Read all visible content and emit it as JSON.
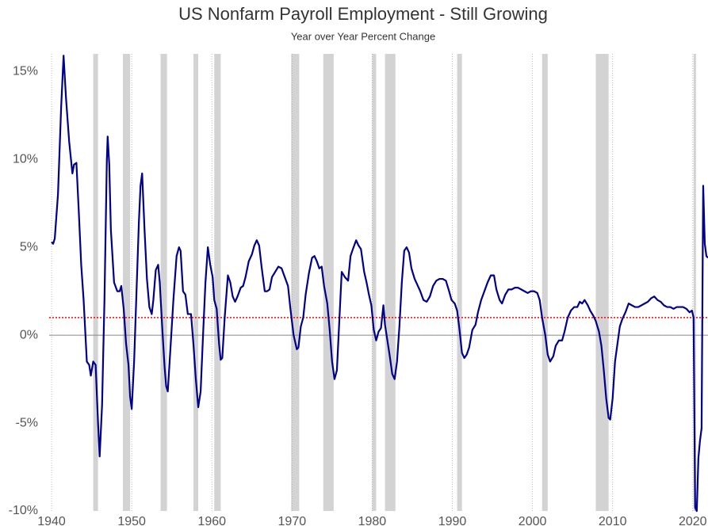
{
  "chart_data": {
    "type": "line",
    "title": "US Nonfarm Payroll Employment - Still Growing",
    "subtitle": "Year over Year Percent Change",
    "xlim": [
      1939.7,
      2021.9
    ],
    "xticks": [
      1940,
      1950,
      1960,
      1970,
      1980,
      1990,
      2000,
      2010,
      2020
    ],
    "ylim": [
      -10,
      16
    ],
    "yticks": [
      {
        "value": -10,
        "label": "-10%"
      },
      {
        "value": -5,
        "label": "-5%"
      },
      {
        "value": 0,
        "label": "0%"
      },
      {
        "value": 5,
        "label": "5%"
      },
      {
        "value": 10,
        "label": "10%"
      },
      {
        "value": 15,
        "label": "15%"
      }
    ],
    "baseline": 0,
    "reference_line": {
      "value": 1,
      "color": "#ff0000"
    },
    "recession_color": "#d3d3d3",
    "recessions": [
      [
        1945.2,
        1945.8
      ],
      [
        1948.9,
        1949.8
      ],
      [
        1953.6,
        1954.4
      ],
      [
        1957.7,
        1958.3
      ],
      [
        1960.3,
        1961.1
      ],
      [
        1969.9,
        1970.9
      ],
      [
        1973.9,
        1975.2
      ],
      [
        1980.0,
        1980.5
      ],
      [
        1981.6,
        1982.9
      ],
      [
        1990.6,
        1991.2
      ],
      [
        2001.2,
        2001.9
      ],
      [
        2007.9,
        2009.5
      ],
      [
        2020.1,
        2020.4
      ]
    ],
    "color": "#00008b",
    "x": [
      1940.0,
      1940.2,
      1940.4,
      1940.8,
      1941.2,
      1941.5,
      1941.8,
      1942.2,
      1942.6,
      1942.8,
      1943.1,
      1943.4,
      1943.7,
      1944.0,
      1944.4,
      1944.7,
      1944.9,
      1945.2,
      1945.5,
      1945.8,
      1946.0,
      1946.3,
      1946.6,
      1946.9,
      1947.0,
      1947.2,
      1947.4,
      1947.8,
      1948.2,
      1948.5,
      1948.7,
      1949.0,
      1949.3,
      1949.6,
      1949.8,
      1950.0,
      1950.3,
      1950.6,
      1950.9,
      1951.1,
      1951.3,
      1951.6,
      1951.9,
      1952.2,
      1952.5,
      1952.7,
      1953.0,
      1953.3,
      1953.5,
      1953.8,
      1954.1,
      1954.3,
      1954.5,
      1954.8,
      1955.2,
      1955.6,
      1955.9,
      1956.1,
      1956.4,
      1956.7,
      1957.0,
      1957.4,
      1957.7,
      1958.0,
      1958.3,
      1958.6,
      1958.9,
      1959.2,
      1959.5,
      1959.8,
      1960.1,
      1960.3,
      1960.6,
      1960.9,
      1961.1,
      1961.3,
      1961.6,
      1962.0,
      1962.3,
      1962.6,
      1962.9,
      1963.2,
      1963.6,
      1963.9,
      1964.2,
      1964.6,
      1965.0,
      1965.3,
      1965.6,
      1965.9,
      1966.2,
      1966.6,
      1966.9,
      1967.2,
      1967.5,
      1967.9,
      1968.3,
      1968.7,
      1969.1,
      1969.5,
      1969.8,
      1970.2,
      1970.6,
      1970.8,
      1971.1,
      1971.4,
      1971.7,
      1972.1,
      1972.5,
      1972.8,
      1973.1,
      1973.4,
      1973.7,
      1974.0,
      1974.4,
      1974.7,
      1975.0,
      1975.3,
      1975.6,
      1975.9,
      1976.2,
      1976.6,
      1977.0,
      1977.3,
      1977.6,
      1978.0,
      1978.3,
      1978.6,
      1979.0,
      1979.3,
      1979.6,
      1979.9,
      1980.2,
      1980.5,
      1980.8,
      1981.1,
      1981.4,
      1981.6,
      1981.9,
      1982.2,
      1982.5,
      1982.8,
      1983.1,
      1983.4,
      1983.7,
      1984.0,
      1984.3,
      1984.6,
      1984.9,
      1985.3,
      1985.7,
      1986.0,
      1986.4,
      1986.8,
      1987.2,
      1987.6,
      1988.0,
      1988.4,
      1988.8,
      1989.2,
      1989.6,
      1989.9,
      1990.3,
      1990.6,
      1990.9,
      1991.2,
      1991.5,
      1991.8,
      1992.1,
      1992.5,
      1992.9,
      1993.2,
      1993.6,
      1994.0,
      1994.4,
      1994.8,
      1995.2,
      1995.5,
      1995.9,
      1996.2,
      1996.6,
      1997.0,
      1997.4,
      1997.8,
      1998.2,
      1998.6,
      1999.0,
      1999.4,
      1999.8,
      2000.2,
      2000.6,
      2000.9,
      2001.2,
      2001.6,
      2001.9,
      2002.2,
      2002.6,
      2002.9,
      2003.3,
      2003.7,
      2004.0,
      2004.4,
      2004.8,
      2005.2,
      2005.6,
      2005.9,
      2006.2,
      2006.5,
      2006.9,
      2007.2,
      2007.6,
      2007.9,
      2008.3,
      2008.6,
      2008.9,
      2009.2,
      2009.5,
      2009.7,
      2010.0,
      2010.3,
      2010.6,
      2010.9,
      2011.2,
      2011.6,
      2012.0,
      2012.4,
      2012.8,
      2013.2,
      2013.6,
      2014.0,
      2014.4,
      2014.8,
      2015.2,
      2015.6,
      2016.0,
      2016.4,
      2016.8,
      2017.2,
      2017.6,
      2018.0,
      2018.4,
      2018.8,
      2019.2,
      2019.6,
      2019.9,
      2020.1,
      2020.3,
      2020.5,
      2020.7,
      2020.9,
      2021.1,
      2021.3,
      2021.5,
      2021.7,
      2021.9
    ],
    "values": [
      5.3,
      5.2,
      5.5,
      8,
      13,
      15.9,
      13.5,
      11,
      9.2,
      9.7,
      9.8,
      7,
      4,
      2,
      -1.5,
      -1.7,
      -2.3,
      -1.5,
      -1.7,
      -5,
      -6.9,
      -4,
      2,
      10,
      11.3,
      9.7,
      6,
      3,
      2.5,
      2.5,
      2.8,
      1.5,
      -0.5,
      -1.7,
      -3.5,
      -4.2,
      -1.5,
      2.5,
      6.5,
      8.5,
      9.2,
      6,
      3.2,
      1.6,
      1.2,
      2,
      3.7,
      4.0,
      3,
      0.5,
      -1.8,
      -2.9,
      -3.2,
      -1,
      2,
      4.5,
      5.0,
      4.8,
      2.5,
      2.3,
      1.2,
      1.2,
      -0.5,
      -2.5,
      -4.1,
      -3.2,
      0,
      3,
      5.0,
      4,
      3.3,
      2,
      1.5,
      -0.5,
      -1.4,
      -1.3,
      1,
      3.4,
      3,
      2.2,
      1.9,
      2.2,
      2.7,
      2.8,
      3.3,
      4.2,
      4.6,
      5.1,
      5.4,
      5.1,
      3.9,
      2.5,
      2.5,
      2.6,
      3.3,
      3.6,
      3.9,
      3.8,
      3.3,
      2.8,
      1.5,
      0,
      -0.8,
      -0.7,
      0.5,
      1,
      2.3,
      3.5,
      4.4,
      4.5,
      4.2,
      3.8,
      3.9,
      2.8,
      1.8,
      0.3,
      -1.5,
      -2.5,
      -2,
      0.8,
      3.6,
      3.3,
      3.1,
      4.5,
      4.9,
      5.4,
      5.1,
      4.9,
      3.6,
      3,
      2.3,
      1.7,
      0.3,
      -0.3,
      0.2,
      0.4,
      1.7,
      0.6,
      -0.3,
      -1.2,
      -2.2,
      -2.5,
      -1.5,
      0.5,
      3,
      4.8,
      5,
      4.7,
      3.8,
      3.2,
      2.8,
      2.5,
      2,
      1.9,
      2.2,
      2.8,
      3.1,
      3.2,
      3.2,
      3.1,
      2.5,
      2,
      1.8,
      1.4,
      0.3,
      -1,
      -1.3,
      -1.1,
      -0.7,
      0.3,
      0.6,
      1.3,
      2,
      2.5,
      3,
      3.4,
      3.4,
      2.6,
      2,
      1.8,
      2.3,
      2.6,
      2.6,
      2.7,
      2.7,
      2.6,
      2.5,
      2.4,
      2.5,
      2.5,
      2.4,
      2,
      1,
      0,
      -1.1,
      -1.5,
      -1.2,
      -0.6,
      -0.3,
      -0.3,
      0.2,
      1,
      1.4,
      1.6,
      1.6,
      1.9,
      1.8,
      2.0,
      1.7,
      1.4,
      1.1,
      0.8,
      0.2,
      -0.6,
      -2,
      -3.6,
      -4.7,
      -4.8,
      -3.6,
      -1.5,
      -0.5,
      0.5,
      0.9,
      1.3,
      1.8,
      1.7,
      1.6,
      1.6,
      1.7,
      1.8,
      1.9,
      2.1,
      2.2,
      2.0,
      1.9,
      1.7,
      1.6,
      1.6,
      1.5,
      1.6,
      1.6,
      1.6,
      1.5,
      1.3,
      1.4,
      1.0,
      -9.8,
      -10,
      -7,
      -6,
      -5.3,
      8.5,
      5.2,
      4.5,
      4.4
    ]
  }
}
